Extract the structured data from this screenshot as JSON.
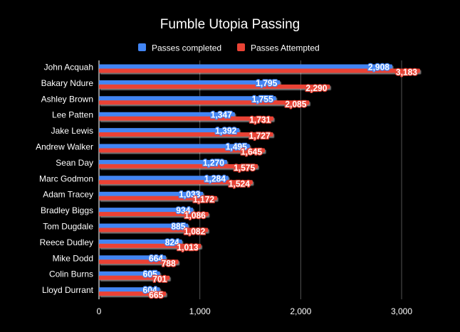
{
  "chart_data": {
    "type": "bar",
    "orientation": "horizontal",
    "title": "Fumble Utopia Passing",
    "legend_position": "top",
    "categories": [
      "John Acquah",
      "Bakary Ndure",
      "Ashley Brown",
      "Lee Patten",
      "Jake Lewis",
      "Andrew Walker",
      "Sean Day",
      "Marc Godmon",
      "Adam Tracey",
      "Bradley Biggs",
      "Tom Dugdale",
      "Reece Dudley",
      "Mike Dodd",
      "Colin Burns",
      "Lloyd Durrant"
    ],
    "series": [
      {
        "name": "Passes completed",
        "color": "#4285f4",
        "values": [
          2908,
          1795,
          1755,
          1347,
          1392,
          1495,
          1270,
          1284,
          1033,
          934,
          885,
          824,
          664,
          605,
          604
        ],
        "labels": [
          "2,908",
          "1,795",
          "1,755",
          "1,347",
          "1,392",
          "1,495",
          "1,270",
          "1,284",
          "1,033",
          "934",
          "885",
          "824",
          "664",
          "605",
          "604"
        ]
      },
      {
        "name": "Passes Attempted",
        "color": "#ea4335",
        "values": [
          3183,
          2290,
          2085,
          1731,
          1727,
          1645,
          1575,
          1524,
          1172,
          1086,
          1082,
          1013,
          788,
          701,
          665
        ],
        "labels": [
          "3,183",
          "2,290",
          "2,085",
          "1,731",
          "1,727",
          "1,645",
          "1,575",
          "1,524",
          "1,172",
          "1,086",
          "1,082",
          "1,013",
          "788",
          "701",
          "665"
        ]
      }
    ],
    "xlim": [
      0,
      3500
    ],
    "xticks": [
      0,
      1000,
      2000,
      3000
    ],
    "xtick_labels": [
      "0",
      "1,000",
      "2,000",
      "3,000"
    ],
    "xlabel": "",
    "ylabel": "",
    "grid": true,
    "background": "#000000",
    "text_color": "#ffffff",
    "grid_color": "#555555"
  }
}
